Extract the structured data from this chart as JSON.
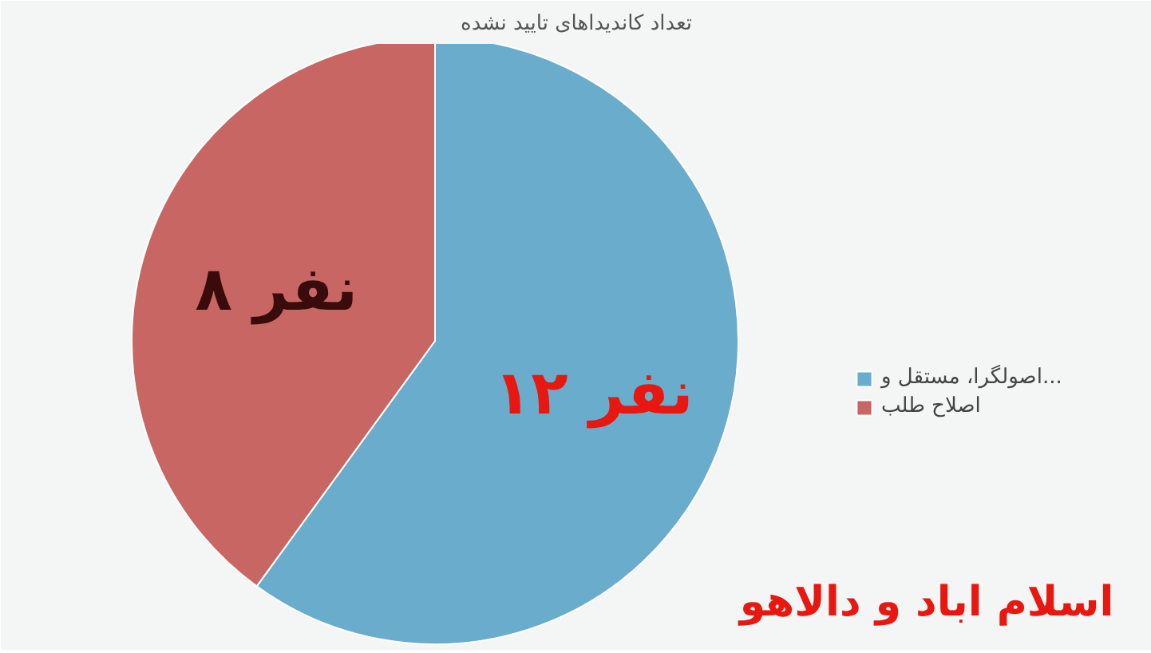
{
  "chart_data": {
    "type": "pie",
    "title": "تعداد کاندیداهای تایید نشده",
    "categories": [
      "اصولگرا، مستقل و...",
      "اصلاح طلب"
    ],
    "values": [
      12,
      8
    ],
    "colors": [
      "#6aaccb",
      "#c76663"
    ],
    "value_labels": [
      "۱۲ نفر",
      "۸ نفر"
    ],
    "legend": "right",
    "annotations": [
      "اسلام اباد و دالاهو"
    ]
  }
}
